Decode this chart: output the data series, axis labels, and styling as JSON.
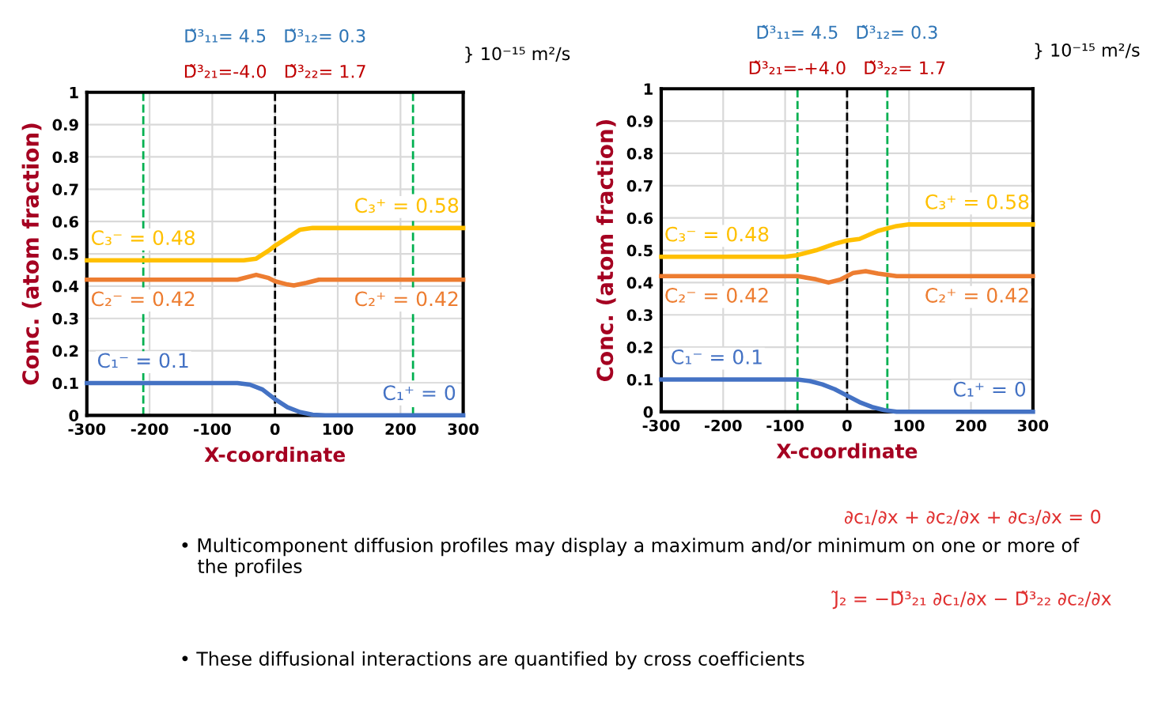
{
  "chart_data": [
    {
      "type": "line",
      "xlabel": "X-coordinate",
      "ylabel": "Conc. (atom fraction)",
      "series": [
        {
          "color": "#4472c4",
          "x": [
            -300,
            -60,
            -40,
            -20,
            0,
            20,
            40,
            60,
            80,
            300
          ],
          "values": [
            0.1,
            0.1,
            0.095,
            0.08,
            0.05,
            0.025,
            0.01,
            0.002,
            0,
            0
          ]
        },
        {
          "color": "#ed7d31",
          "x": [
            -300,
            -60,
            -30,
            -10,
            0,
            20,
            30,
            50,
            70,
            300
          ],
          "values": [
            0.42,
            0.42,
            0.435,
            0.425,
            0.415,
            0.405,
            0.402,
            0.41,
            0.42,
            0.42
          ]
        },
        {
          "color": "#ffc000",
          "x": [
            -300,
            -50,
            -30,
            -10,
            0,
            20,
            40,
            60,
            300
          ],
          "values": [
            0.48,
            0.48,
            0.485,
            0.51,
            0.525,
            0.55,
            0.575,
            0.58,
            0.58
          ]
        }
      ],
      "xlim": [
        -300,
        300
      ],
      "ylim": [
        0,
        1
      ],
      "xticks": [
        -300,
        -200,
        -100,
        0,
        100,
        200,
        300
      ],
      "yticks": [
        0,
        0.1,
        0.2,
        0.3,
        0.4,
        0.5,
        0.6,
        0.7,
        0.8,
        0.9,
        1
      ],
      "grid": true,
      "marker": "none",
      "line_style": "solid",
      "ref_lines": [
        {
          "axis": "x",
          "value": 0,
          "color": "#000000",
          "line_style": "dashed"
        },
        {
          "axis": "x",
          "value": -210,
          "color": "#00b050",
          "line_style": "dashed"
        },
        {
          "axis": "x",
          "value": 220,
          "color": "#00b050",
          "line_style": "dashed"
        }
      ],
      "annotations": [
        {
          "text": "C₃⁻ = 0.48",
          "x": -210,
          "y": 0.48
        },
        {
          "text": "C₃⁺ = 0.58",
          "x": 210,
          "y": 0.58
        },
        {
          "text": "C₂⁻ = 0.42",
          "x": -210,
          "y": 0.42
        },
        {
          "text": "C₂⁺ = 0.42",
          "x": 210,
          "y": 0.42
        },
        {
          "text": "C₁⁻ = 0.1",
          "x": -210,
          "y": 0.1
        },
        {
          "text": "C₁⁺ = 0",
          "x": 230,
          "y": 0
        },
        "D̃³₁₁= 4.5   D̃³₁₂= 0.3",
        "D̃³₂₁=-4.0   D̃³₂₂= 1.7",
        "} 10⁻¹⁵ m²/s"
      ]
    },
    {
      "type": "line",
      "xlabel": "X-coordinate",
      "ylabel": "Conc. (atom fraction)",
      "series": [
        {
          "color": "#4472c4",
          "x": [
            -300,
            -80,
            -60,
            -40,
            -20,
            0,
            20,
            40,
            60,
            80,
            300
          ],
          "values": [
            0.1,
            0.1,
            0.095,
            0.085,
            0.07,
            0.05,
            0.03,
            0.015,
            0.005,
            0,
            0
          ]
        },
        {
          "color": "#ed7d31",
          "x": [
            -300,
            -80,
            -50,
            -30,
            -10,
            0,
            10,
            30,
            50,
            80,
            300
          ],
          "values": [
            0.42,
            0.42,
            0.41,
            0.4,
            0.41,
            0.42,
            0.43,
            0.435,
            0.428,
            0.42,
            0.42
          ]
        },
        {
          "color": "#ffc000",
          "x": [
            -300,
            -100,
            -80,
            -50,
            -20,
            0,
            20,
            50,
            80,
            100,
            300
          ],
          "values": [
            0.48,
            0.48,
            0.485,
            0.5,
            0.52,
            0.53,
            0.535,
            0.56,
            0.575,
            0.58,
            0.58
          ]
        }
      ],
      "xlim": [
        -300,
        300
      ],
      "ylim": [
        0,
        1
      ],
      "xticks": [
        -300,
        -200,
        -100,
        0,
        100,
        200,
        300
      ],
      "yticks": [
        0,
        0.1,
        0.2,
        0.3,
        0.4,
        0.5,
        0.6,
        0.7,
        0.8,
        0.9,
        1
      ],
      "grid": true,
      "marker": "none",
      "line_style": "solid",
      "ref_lines": [
        {
          "axis": "x",
          "value": 0,
          "color": "#000000",
          "line_style": "dashed"
        },
        {
          "axis": "x",
          "value": -80,
          "color": "#00b050",
          "line_style": "dashed"
        },
        {
          "axis": "x",
          "value": 65,
          "color": "#00b050",
          "line_style": "dashed"
        }
      ],
      "annotations": [
        {
          "text": "C₃⁻ = 0.48",
          "x": -210,
          "y": 0.48
        },
        {
          "text": "C₃⁺ = 0.58",
          "x": 210,
          "y": 0.58
        },
        {
          "text": "C₂⁻ = 0.42",
          "x": -210,
          "y": 0.42
        },
        {
          "text": "C₂⁺ = 0.42",
          "x": 210,
          "y": 0.42
        },
        {
          "text": "C₁⁻ = 0.1",
          "x": -210,
          "y": 0.1
        },
        {
          "text": "C₁⁺ = 0",
          "x": 230,
          "y": 0
        },
        "D̃³₁₁= 4.5   D̃³₁₂= 0.3",
        "D̃³₂₁=-+4.0   D̃³₂₂= 1.7",
        "} 10⁻¹⁵ m²/s",
        "∂c₁/∂x + ∂c₂/∂x + ∂c₃/∂x = 0",
        "• Multicomponent diffusion profiles may display a maximum and/or minimum on one or more of\n   the profiles",
        "J̃₂ = −D̃³₂₁ ∂c₁/∂x − D̃³₂₂ ∂c₂/∂x",
        "• These diffusional interactions are quantified by cross coefficients"
      ]
    }
  ]
}
